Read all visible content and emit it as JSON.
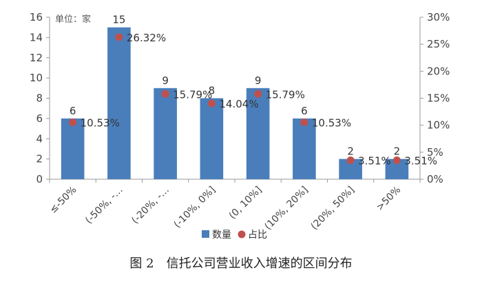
{
  "caption": "图 2　信托公司营业收入增速的区间分布",
  "chart_data": {
    "type": "bar",
    "categories": [
      "≤-50%",
      "(-50%, -…",
      "(-20%, -…",
      "(-10%, 0%]",
      "(0, 10%]",
      "(10%, 20%]",
      "(20%, 50%]",
      ">50%"
    ],
    "series": [
      {
        "name": "数量",
        "axis": "left",
        "type": "bar",
        "values": [
          6,
          15,
          9,
          8,
          9,
          6,
          2,
          2
        ],
        "labels": [
          "6",
          "15",
          "9",
          "8",
          "9",
          "6",
          "2",
          "2"
        ],
        "color": "#4A7EBB"
      },
      {
        "name": "占比",
        "axis": "right",
        "type": "scatter",
        "values": [
          10.53,
          26.32,
          15.79,
          14.04,
          15.79,
          10.53,
          3.51,
          3.51
        ],
        "labels": [
          "10.53%",
          "26.32%",
          "15.79%",
          "14.04%",
          "15.79%",
          "10.53%",
          "3.51%",
          "3.51%"
        ],
        "color": "#C0504D"
      }
    ],
    "unit_note": "单位：家",
    "y_left": {
      "min": 0,
      "max": 16,
      "ticks": [
        "0",
        "2",
        "4",
        "6",
        "8",
        "10",
        "12",
        "14",
        "16"
      ]
    },
    "y_right": {
      "min": 0,
      "max": 30,
      "ticks": [
        "0%",
        "5%",
        "10%",
        "15%",
        "20%",
        "25%",
        "30%"
      ]
    },
    "grid": false,
    "legend_position": "bottom"
  }
}
